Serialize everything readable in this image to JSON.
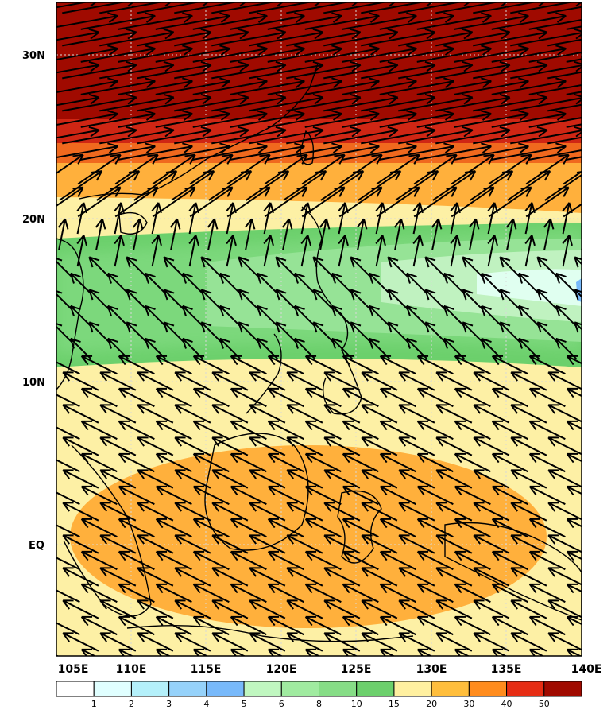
{
  "map": {
    "lat_labels": [
      "30N",
      "20N",
      "10N",
      "EQ"
    ],
    "lon_labels": [
      "105E",
      "110E",
      "115E",
      "120E",
      "125E",
      "130E",
      "135E",
      "140E"
    ],
    "colorbar": {
      "ticks": [
        "1",
        "2",
        "3",
        "4",
        "5",
        "6",
        "8",
        "10",
        "15",
        "20",
        "30",
        "40",
        "50"
      ],
      "colors": [
        "#ffffff",
        "#e0ffff",
        "#b4f0fa",
        "#96d2fa",
        "#78b9fa",
        "#c0f7c0",
        "#a0eba0",
        "#86dd86",
        "#6cd06c",
        "#fff0a0",
        "#ffbe3c",
        "#ff8c1e",
        "#e62d14",
        "#a00a00"
      ]
    },
    "colors": {
      "dark_red": "#a00a00",
      "red": "#cf2614",
      "orange_red": "#f0691e",
      "orange": "#ffb03c",
      "pale_yellow": "#fdf0a5",
      "green": "#6cd06c",
      "light_green": "#96e396",
      "pale_green": "#c0f2c0",
      "land_outline": "#000000",
      "vector": "#000000"
    },
    "icons": [
      "wind-vector-arrows",
      "coastline"
    ]
  }
}
